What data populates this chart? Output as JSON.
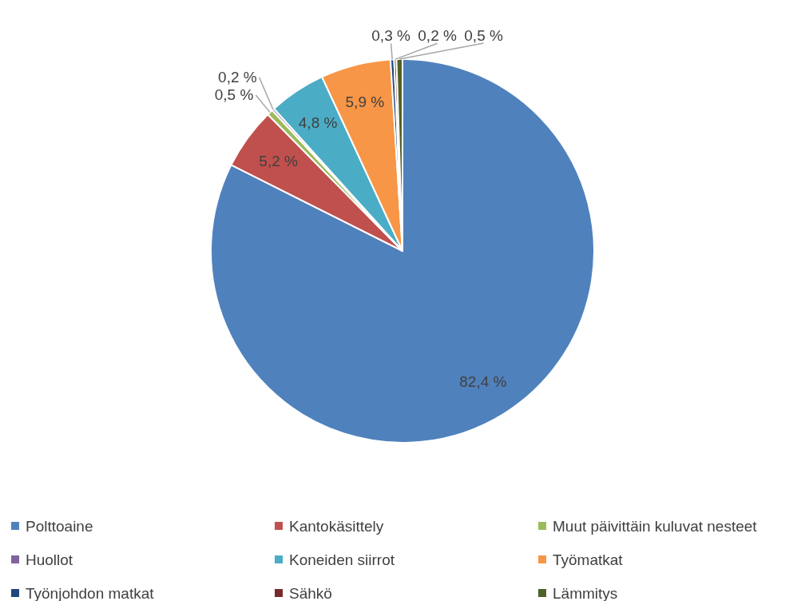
{
  "chart_data": {
    "type": "pie",
    "categories": [
      "Polttoaine",
      "Kantokäsittely",
      "Muut päivittäin kuluvat nesteet",
      "Huollot",
      "Koneiden siirrot",
      "Työmatkat",
      "Työnjohdon matkat",
      "Sähkö",
      "Lämmitys"
    ],
    "values": [
      82.4,
      5.2,
      0.5,
      0.2,
      4.8,
      5.9,
      0.3,
      0.2,
      0.5
    ],
    "colors": [
      "#4f81bd",
      "#c0504d",
      "#9bbb59",
      "#8064a2",
      "#4bacc6",
      "#f79646",
      "#1f497d",
      "#772c2a",
      "#4f6228"
    ],
    "value_labels": [
      "82,4 %",
      "5,2 %",
      "0,5 %",
      "0,2 %",
      "4,8 %",
      "5,9 %",
      "0,3 %",
      "0,2 %",
      "0,5 %"
    ],
    "legend": "bottom"
  }
}
